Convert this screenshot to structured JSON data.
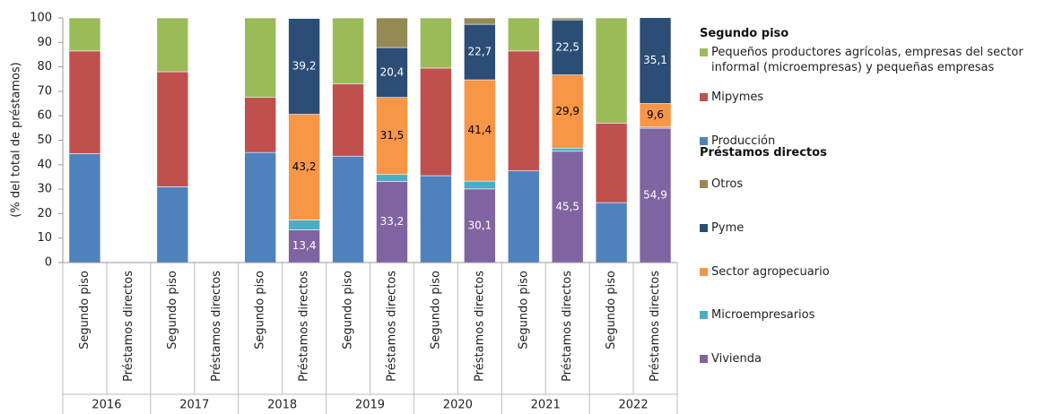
{
  "chart_data": {
    "type": "stacked_bar",
    "y_label": "(% del total de préstamos)",
    "categories": [
      "Segundo piso",
      "Préstamos directos",
      "Segundo piso",
      "Préstamos directos",
      "Segundo piso",
      "Préstamos directos",
      "Segundo piso",
      "Préstamos directos",
      "Segundo piso",
      "Préstamos directos",
      "Segundo piso",
      "Préstamos directos",
      "Segundo piso",
      "Préstamos directos"
    ],
    "group_labels": [
      "2016",
      "2017",
      "2018",
      "2019",
      "2020",
      "2021",
      "2022"
    ],
    "ylim": [
      0,
      100
    ],
    "yticks": [
      0,
      10,
      20,
      30,
      40,
      50,
      60,
      70,
      80,
      90,
      100
    ],
    "grid": false,
    "legend_groups": [
      {
        "title": "Segundo piso",
        "series": [
          2,
          1,
          0
        ]
      },
      {
        "title": "Préstamos directos",
        "series": [
          7,
          6,
          5,
          4,
          3
        ]
      }
    ],
    "series": [
      {
        "name": "Producción",
        "color": "#4f81bd",
        "values": [
          44.5,
          null,
          31,
          null,
          45,
          null,
          43.5,
          null,
          35.5,
          null,
          37.5,
          null,
          24.5,
          null
        ]
      },
      {
        "name": "Mipymes",
        "color": "#c0504d",
        "values": [
          42,
          null,
          47,
          null,
          22.5,
          null,
          29.5,
          null,
          44,
          null,
          49,
          null,
          32.5,
          null
        ]
      },
      {
        "name": "Pequeños productores agrícolas, empresas del sector informal (microempresas) y pequeñas empresas",
        "color": "#9bbb59",
        "values": [
          13.5,
          null,
          22,
          null,
          32.5,
          null,
          27,
          null,
          20.5,
          null,
          13.5,
          null,
          43,
          null
        ]
      },
      {
        "name": "Vivienda",
        "color": "#8064a2",
        "label_color": "#ffffff",
        "values": [
          null,
          null,
          null,
          null,
          null,
          13.4,
          null,
          33.2,
          null,
          30.1,
          null,
          45.5,
          null,
          54.9
        ],
        "value_labels": [
          null,
          null,
          null,
          null,
          null,
          "13,4",
          null,
          "33,2",
          null,
          "30,1",
          null,
          "45,5",
          null,
          "54,9"
        ]
      },
      {
        "name": "Microempresarios",
        "color": "#4bacc6",
        "values": [
          null,
          null,
          null,
          null,
          null,
          4,
          null,
          2.8,
          null,
          3.2,
          null,
          1.3,
          null,
          0.5
        ]
      },
      {
        "name": "Sector agropecuario",
        "color": "#f79646",
        "label_color": "#000000",
        "values": [
          null,
          null,
          null,
          null,
          null,
          43.2,
          null,
          31.5,
          null,
          41.4,
          null,
          29.9,
          null,
          9.6
        ],
        "value_labels": [
          null,
          null,
          null,
          null,
          null,
          "43,2",
          null,
          "31,5",
          null,
          "41,4",
          null,
          "29,9",
          null,
          "9,6"
        ]
      },
      {
        "name": "Pyme",
        "color": "#2c4d75",
        "label_color": "#ffffff",
        "values": [
          null,
          null,
          null,
          null,
          null,
          39.2,
          null,
          20.4,
          null,
          22.7,
          null,
          22.5,
          null,
          35.1
        ],
        "value_labels": [
          null,
          null,
          null,
          null,
          null,
          "39,2",
          null,
          "20,4",
          null,
          "22,7",
          null,
          "22,5",
          null,
          "35,1"
        ]
      },
      {
        "name": "Otros",
        "color": "#948a54",
        "values": [
          null,
          null,
          null,
          null,
          null,
          0.2,
          null,
          12.1,
          null,
          2.6,
          null,
          0.8,
          null,
          0
        ]
      }
    ]
  }
}
